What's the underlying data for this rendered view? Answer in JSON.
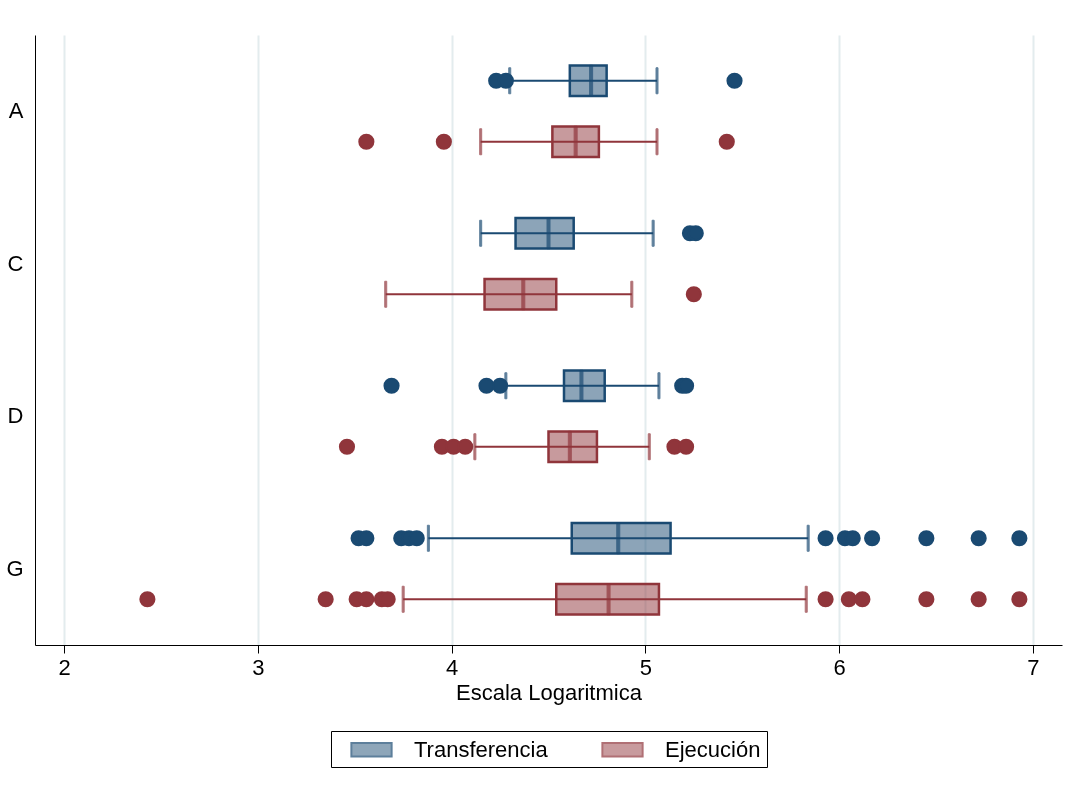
{
  "chart_data": {
    "type": "box",
    "orientation": "horizontal",
    "categories": [
      "A",
      "C",
      "D",
      "G"
    ],
    "xlabel": "Escala Logaritmica",
    "xlim": [
      1.85,
      7.15
    ],
    "xticks": [
      2,
      3,
      4,
      5,
      6,
      7
    ],
    "grid": "x",
    "legend": "bottom",
    "series": [
      {
        "name": "Transferencia",
        "color": "#1a4a72",
        "boxes": [
          {
            "low": 4.3,
            "q1": 4.61,
            "median": 4.72,
            "q3": 4.8,
            "high": 5.06,
            "outliers": [
              4.23,
              4.28,
              5.46
            ]
          },
          {
            "low": 4.15,
            "q1": 4.33,
            "median": 4.5,
            "q3": 4.63,
            "high": 5.04,
            "outliers": [
              5.23,
              5.26
            ]
          },
          {
            "low": 4.28,
            "q1": 4.58,
            "median": 4.67,
            "q3": 4.79,
            "high": 5.07,
            "outliers": [
              3.69,
              4.18,
              4.25,
              5.19,
              5.21
            ]
          },
          {
            "low": 3.88,
            "q1": 4.62,
            "median": 4.86,
            "q3": 5.13,
            "high": 5.84,
            "outliers": [
              3.52,
              3.56,
              3.74,
              3.78,
              3.82,
              5.93,
              6.03,
              6.07,
              6.17,
              6.45,
              6.72,
              6.93
            ]
          }
        ]
      },
      {
        "name": "Ejecución",
        "color": "#90353b",
        "boxes": [
          {
            "low": 4.15,
            "q1": 4.52,
            "median": 4.64,
            "q3": 4.76,
            "high": 5.06,
            "outliers": [
              3.56,
              3.96,
              5.42
            ]
          },
          {
            "low": 3.66,
            "q1": 4.17,
            "median": 4.37,
            "q3": 4.54,
            "high": 4.93,
            "outliers": [
              5.25
            ]
          },
          {
            "low": 4.12,
            "q1": 4.5,
            "median": 4.61,
            "q3": 4.75,
            "high": 5.02,
            "outliers": [
              3.46,
              3.95,
              4.01,
              4.07,
              5.15,
              5.21
            ]
          },
          {
            "low": 3.75,
            "q1": 4.54,
            "median": 4.81,
            "q3": 5.07,
            "high": 5.83,
            "outliers": [
              2.43,
              3.35,
              3.51,
              3.56,
              3.64,
              3.67,
              5.93,
              6.05,
              6.12,
              6.45,
              6.72,
              6.93
            ]
          }
        ]
      }
    ]
  }
}
